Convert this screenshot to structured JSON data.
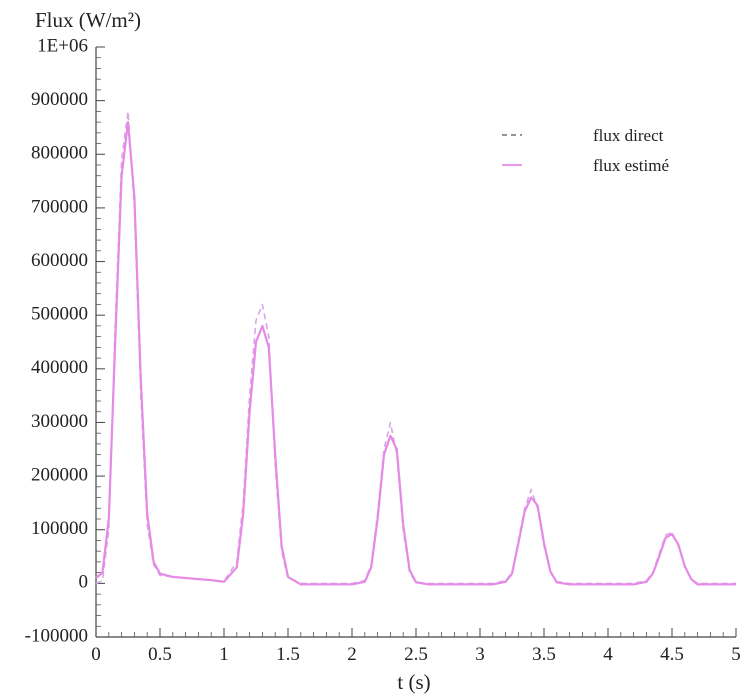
{
  "chart_data": {
    "type": "line",
    "ylabel": "Flux (W/m²)",
    "xlabel": "t (s)",
    "xlim": [
      0,
      5
    ],
    "ylim": [
      -100000,
      1000000
    ],
    "x_ticks": [
      {
        "value": 0,
        "label": "0"
      },
      {
        "value": 0.5,
        "label": "0.5"
      },
      {
        "value": 1,
        "label": "1"
      },
      {
        "value": 1.5,
        "label": "1.5"
      },
      {
        "value": 2,
        "label": "2"
      },
      {
        "value": 2.5,
        "label": "2.5"
      },
      {
        "value": 3,
        "label": "3"
      },
      {
        "value": 3.5,
        "label": "3.5"
      },
      {
        "value": 4,
        "label": "4"
      },
      {
        "value": 4.5,
        "label": "4.5"
      },
      {
        "value": 5,
        "label": "5"
      }
    ],
    "y_ticks": [
      {
        "value": 1000000,
        "label": "1E+06"
      },
      {
        "value": 900000,
        "label": "900000"
      },
      {
        "value": 800000,
        "label": "800000"
      },
      {
        "value": 700000,
        "label": "700000"
      },
      {
        "value": 600000,
        "label": "600000"
      },
      {
        "value": 500000,
        "label": "500000"
      },
      {
        "value": 400000,
        "label": "400000"
      },
      {
        "value": 300000,
        "label": "300000"
      },
      {
        "value": 200000,
        "label": "200000"
      },
      {
        "value": 100000,
        "label": "100000"
      },
      {
        "value": 0,
        "label": "0"
      },
      {
        "value": -100000,
        "label": "-100000"
      }
    ],
    "legend": {
      "position": "top-right"
    },
    "grid": false,
    "series": [
      {
        "name": "flux direct",
        "color": "#d9a6ea",
        "dash": "dashed",
        "x": [
          0,
          0.05,
          0.1,
          0.15,
          0.2,
          0.25,
          0.3,
          0.35,
          0.4,
          0.45,
          0.5,
          0.6,
          0.7,
          0.8,
          0.9,
          1.0,
          1.1,
          1.15,
          1.2,
          1.25,
          1.3,
          1.35,
          1.4,
          1.45,
          1.5,
          1.6,
          1.7,
          1.8,
          1.9,
          2.0,
          2.1,
          2.15,
          2.2,
          2.25,
          2.3,
          2.35,
          2.4,
          2.45,
          2.5,
          2.6,
          2.7,
          2.8,
          2.9,
          3.0,
          3.1,
          3.2,
          3.25,
          3.3,
          3.35,
          3.4,
          3.45,
          3.5,
          3.55,
          3.6,
          3.7,
          3.8,
          3.9,
          4.0,
          4.1,
          4.2,
          4.3,
          4.35,
          4.4,
          4.45,
          4.5,
          4.55,
          4.6,
          4.65,
          4.7,
          4.8,
          4.9,
          5.0
        ],
        "y": [
          0,
          5000,
          100000,
          480000,
          790000,
          880000,
          700000,
          350000,
          110000,
          35000,
          15000,
          12000,
          10000,
          8000,
          6000,
          4000,
          40000,
          150000,
          350000,
          490000,
          520000,
          460000,
          220000,
          60000,
          10000,
          0,
          0,
          0,
          0,
          0,
          5000,
          35000,
          130000,
          250000,
          300000,
          240000,
          100000,
          20000,
          2000,
          0,
          0,
          0,
          0,
          0,
          0,
          5000,
          20000,
          80000,
          140000,
          175000,
          140000,
          70000,
          20000,
          3000,
          0,
          0,
          0,
          0,
          0,
          0,
          5000,
          20000,
          55000,
          90000,
          95000,
          70000,
          30000,
          8000,
          0,
          0,
          0,
          0
        ]
      },
      {
        "name": "flux estimé",
        "color": "#e58ae6",
        "dash": "solid",
        "x": [
          0,
          0.05,
          0.1,
          0.15,
          0.2,
          0.25,
          0.3,
          0.35,
          0.4,
          0.45,
          0.5,
          0.6,
          0.7,
          0.8,
          0.9,
          1.0,
          1.1,
          1.15,
          1.2,
          1.25,
          1.3,
          1.35,
          1.4,
          1.45,
          1.5,
          1.6,
          1.7,
          1.8,
          1.9,
          2.0,
          2.1,
          2.15,
          2.2,
          2.25,
          2.3,
          2.35,
          2.4,
          2.45,
          2.5,
          2.6,
          2.7,
          2.8,
          2.9,
          3.0,
          3.1,
          3.2,
          3.25,
          3.3,
          3.35,
          3.4,
          3.45,
          3.5,
          3.55,
          3.6,
          3.7,
          3.8,
          3.9,
          4.0,
          4.1,
          4.2,
          4.3,
          4.35,
          4.4,
          4.45,
          4.5,
          4.55,
          4.6,
          4.65,
          4.7,
          4.8,
          4.9,
          5.0
        ],
        "y": [
          10000,
          20000,
          120000,
          450000,
          760000,
          860000,
          720000,
          380000,
          130000,
          40000,
          18000,
          12000,
          10000,
          8000,
          6000,
          3000,
          30000,
          130000,
          320000,
          450000,
          480000,
          440000,
          240000,
          70000,
          12000,
          -2000,
          -2000,
          -2000,
          -2000,
          -2000,
          3000,
          30000,
          120000,
          240000,
          275000,
          250000,
          110000,
          25000,
          2000,
          -2000,
          -2000,
          -2000,
          -2000,
          -2000,
          -2000,
          3000,
          18000,
          75000,
          135000,
          160000,
          145000,
          75000,
          22000,
          2000,
          -2000,
          -2000,
          -2000,
          -2000,
          -2000,
          -2000,
          3000,
          18000,
          50000,
          85000,
          92000,
          72000,
          32000,
          8000,
          -2000,
          -2000,
          -2000,
          -2000
        ]
      }
    ]
  }
}
